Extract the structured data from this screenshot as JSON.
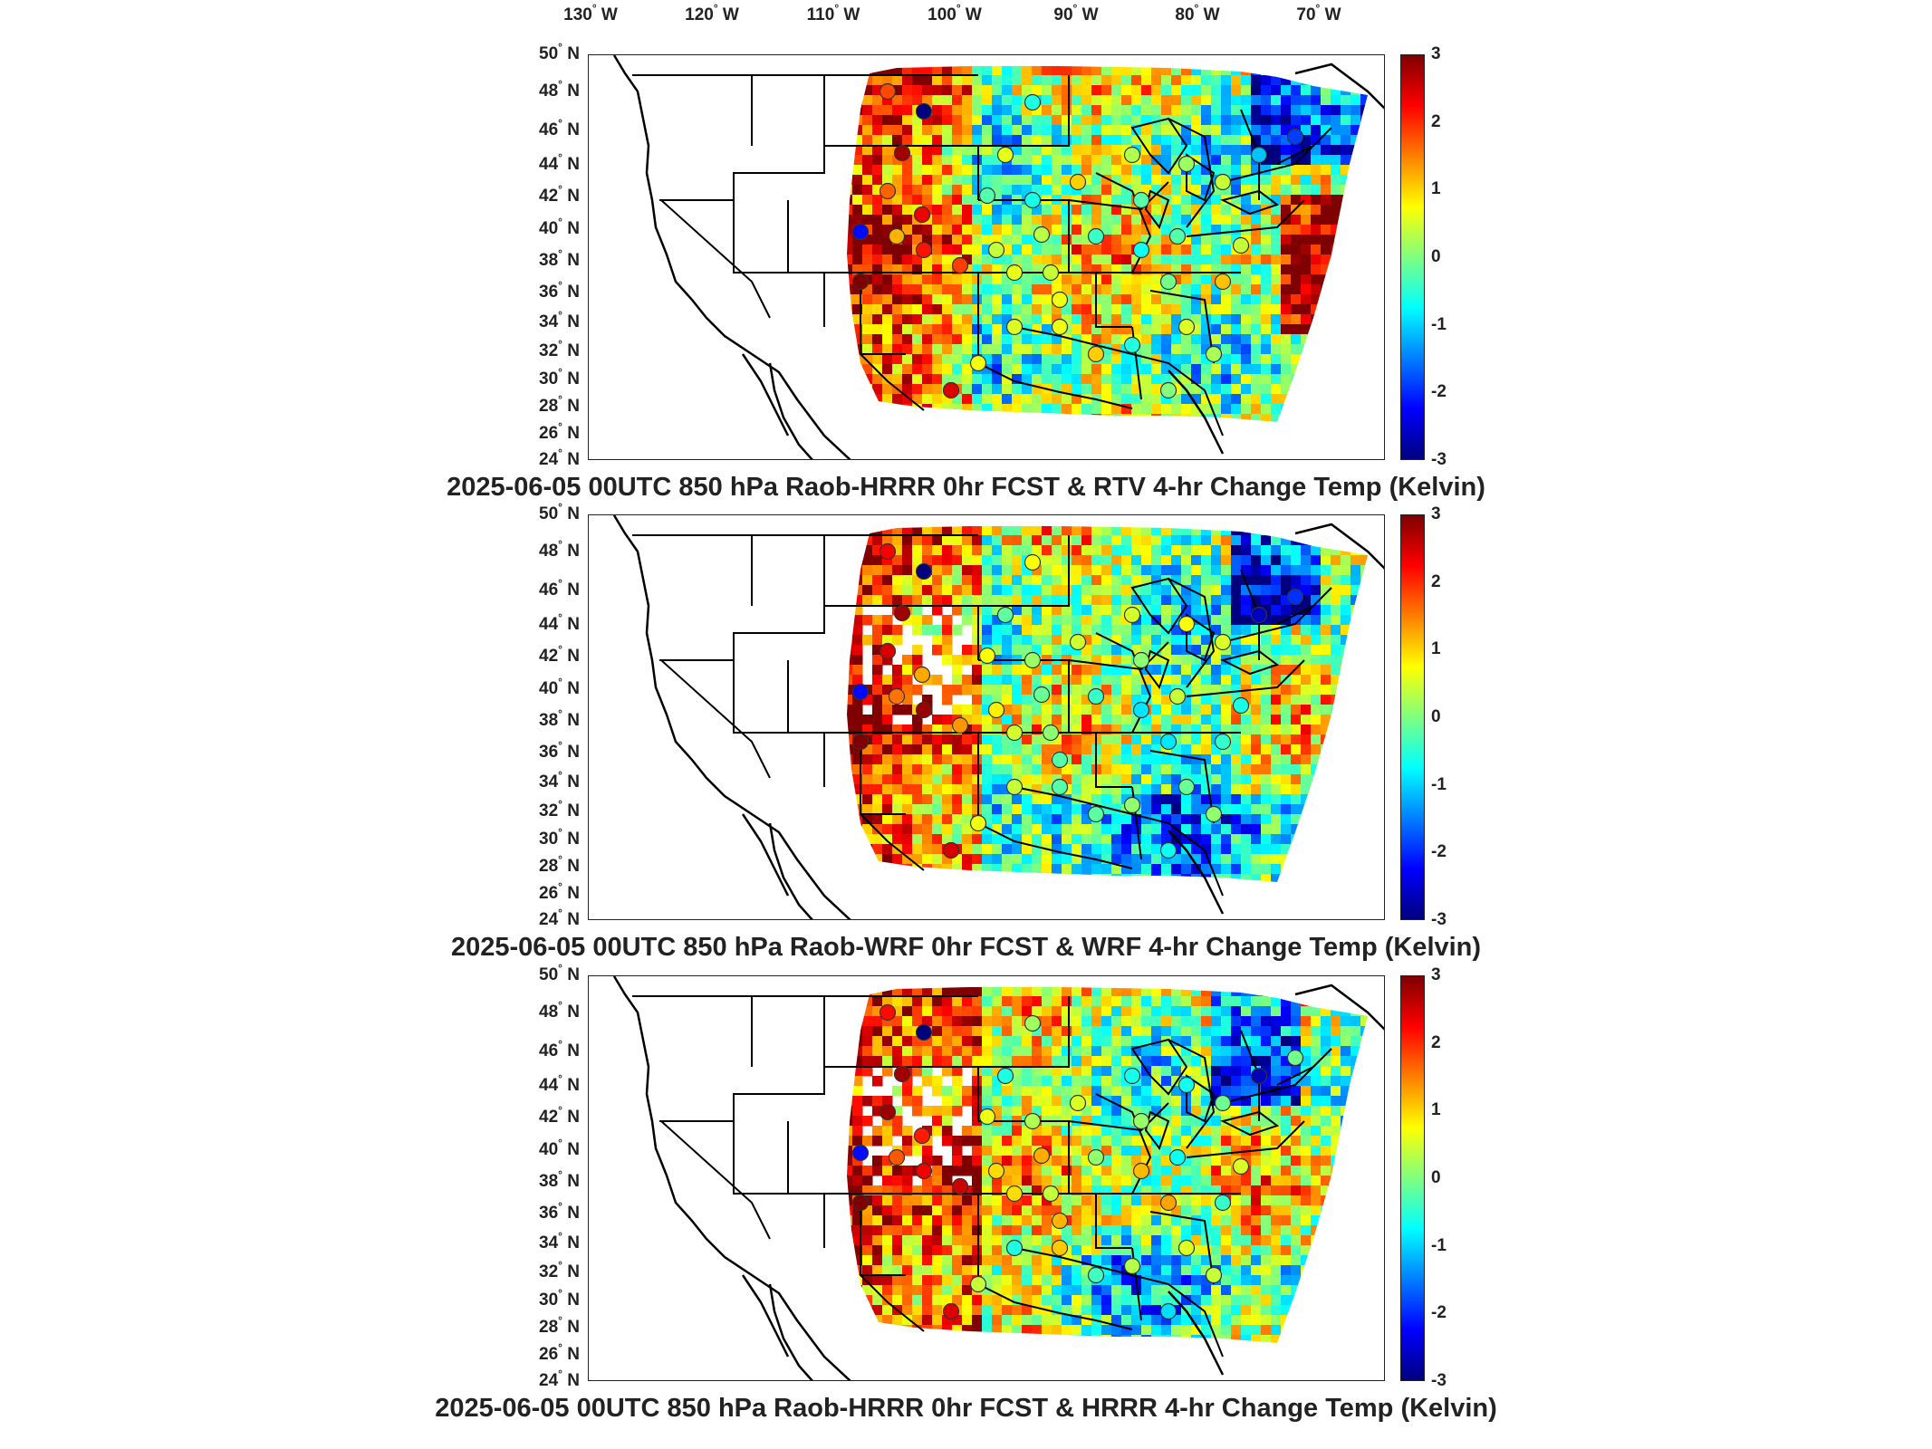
{
  "longitude_axis": {
    "ticks": [
      {
        "deg": "130",
        "hemi": "W"
      },
      {
        "deg": "120",
        "hemi": "W"
      },
      {
        "deg": "110",
        "hemi": "W"
      },
      {
        "deg": "100",
        "hemi": "W"
      },
      {
        "deg": "90",
        "hemi": "W"
      },
      {
        "deg": "80",
        "hemi": "W"
      },
      {
        "deg": "70",
        "hemi": "W"
      }
    ]
  },
  "latitude_axis": {
    "ticks": [
      {
        "deg": "50",
        "hemi": "N"
      },
      {
        "deg": "48",
        "hemi": "N"
      },
      {
        "deg": "46",
        "hemi": "N"
      },
      {
        "deg": "44",
        "hemi": "N"
      },
      {
        "deg": "42",
        "hemi": "N"
      },
      {
        "deg": "40",
        "hemi": "N"
      },
      {
        "deg": "38",
        "hemi": "N"
      },
      {
        "deg": "36",
        "hemi": "N"
      },
      {
        "deg": "34",
        "hemi": "N"
      },
      {
        "deg": "32",
        "hemi": "N"
      },
      {
        "deg": "30",
        "hemi": "N"
      },
      {
        "deg": "28",
        "hemi": "N"
      },
      {
        "deg": "26",
        "hemi": "N"
      },
      {
        "deg": "24",
        "hemi": "N"
      }
    ]
  },
  "colorbar": {
    "ticks": [
      "3",
      "2",
      "1",
      "0",
      "-1",
      "-2",
      "-3"
    ],
    "colors": [
      "#00007f",
      "#0000ff",
      "#007fff",
      "#00ffff",
      "#7fff7f",
      "#ffff00",
      "#ff7f00",
      "#ff0000",
      "#7f0000"
    ]
  },
  "panels": [
    {
      "title": "2025-06-05 00UTC 850 hPa Raob-HRRR 0hr FCST & RTV 4-hr Change Temp (Kelvin)"
    },
    {
      "title": "2025-06-05 00UTC 850 hPa Raob-WRF 0hr FCST & WRF 4-hr Change Temp (Kelvin)"
    },
    {
      "title": "2025-06-05 00UTC 850 hPa Raob-HRRR 0hr FCST & HRRR 4-hr Change Temp (Kelvin)"
    }
  ],
  "style": {
    "outline_color": "#000000",
    "text_color": "#222222"
  }
}
